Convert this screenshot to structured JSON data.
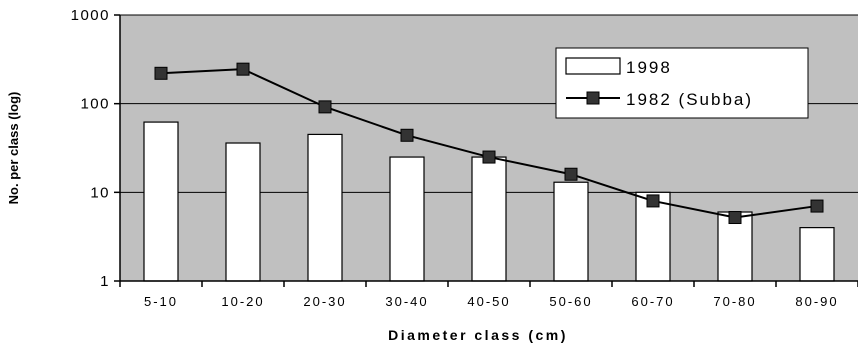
{
  "chart_data": {
    "type": "bar",
    "title": "",
    "xlabel": "Diameter class (cm)",
    "ylabel": "No. per class (log)",
    "yscale": "log",
    "ylim": [
      1,
      1000
    ],
    "yticks": [
      1,
      10,
      100,
      1000
    ],
    "ytick_labels": [
      "1",
      "10",
      "100",
      "1000"
    ],
    "grid": true,
    "legend_position": "top-right",
    "categories": [
      "5-10",
      "10-20",
      "20-30",
      "30-40",
      "40-50",
      "50-60",
      "60-70",
      "70-80",
      "80-90"
    ],
    "series": [
      {
        "name": "1998",
        "kind": "bar",
        "values": [
          62,
          36,
          45,
          25,
          25,
          13,
          10,
          6,
          4
        ]
      },
      {
        "name": "1982 (Subba)",
        "kind": "line",
        "values": [
          220,
          245,
          92,
          44,
          25,
          16,
          8,
          5.2,
          7
        ]
      }
    ],
    "colors": {
      "plot_background": "#c0c0c0",
      "bar_fill": "#ffffff",
      "line": "#000000",
      "marker": "#333333"
    }
  }
}
